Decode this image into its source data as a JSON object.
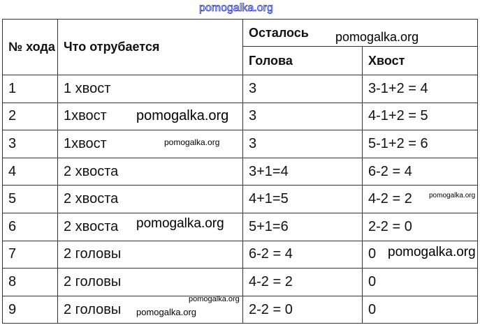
{
  "watermark": "pomogalka.org",
  "headers": {
    "num": "№ хода",
    "what": "Что отрубается",
    "left": "Осталось",
    "head": "Голова",
    "tail": "Хвост"
  },
  "rows": [
    {
      "n": "1",
      "what": "1 хвост",
      "head": "3",
      "tail": "3-1+2 = 4"
    },
    {
      "n": "2",
      "what": "1хвост",
      "head": "3",
      "tail": "4-1+2 = 5"
    },
    {
      "n": "3",
      "what": "1хвост",
      "head": "3",
      "tail": "5-1+2 = 6"
    },
    {
      "n": "4",
      "what": "2 хвоста",
      "head": "3+1=4",
      "tail": "6-2 = 4"
    },
    {
      "n": "5",
      "what": "2 хвоста",
      "head": "4+1=5",
      "tail": "4-2 = 2"
    },
    {
      "n": "6",
      "what": "2 хвоста",
      "head": "5+1=6",
      "tail": "2-2 = 0"
    },
    {
      "n": "7",
      "what": "2 головы",
      "head": "6-2 = 4",
      "tail": "0"
    },
    {
      "n": "8",
      "what": "2 головы",
      "head": "4-2 = 2",
      "tail": "0"
    },
    {
      "n": "9",
      "what": "2 головы",
      "head": "2-2 = 0",
      "tail": "0"
    }
  ]
}
